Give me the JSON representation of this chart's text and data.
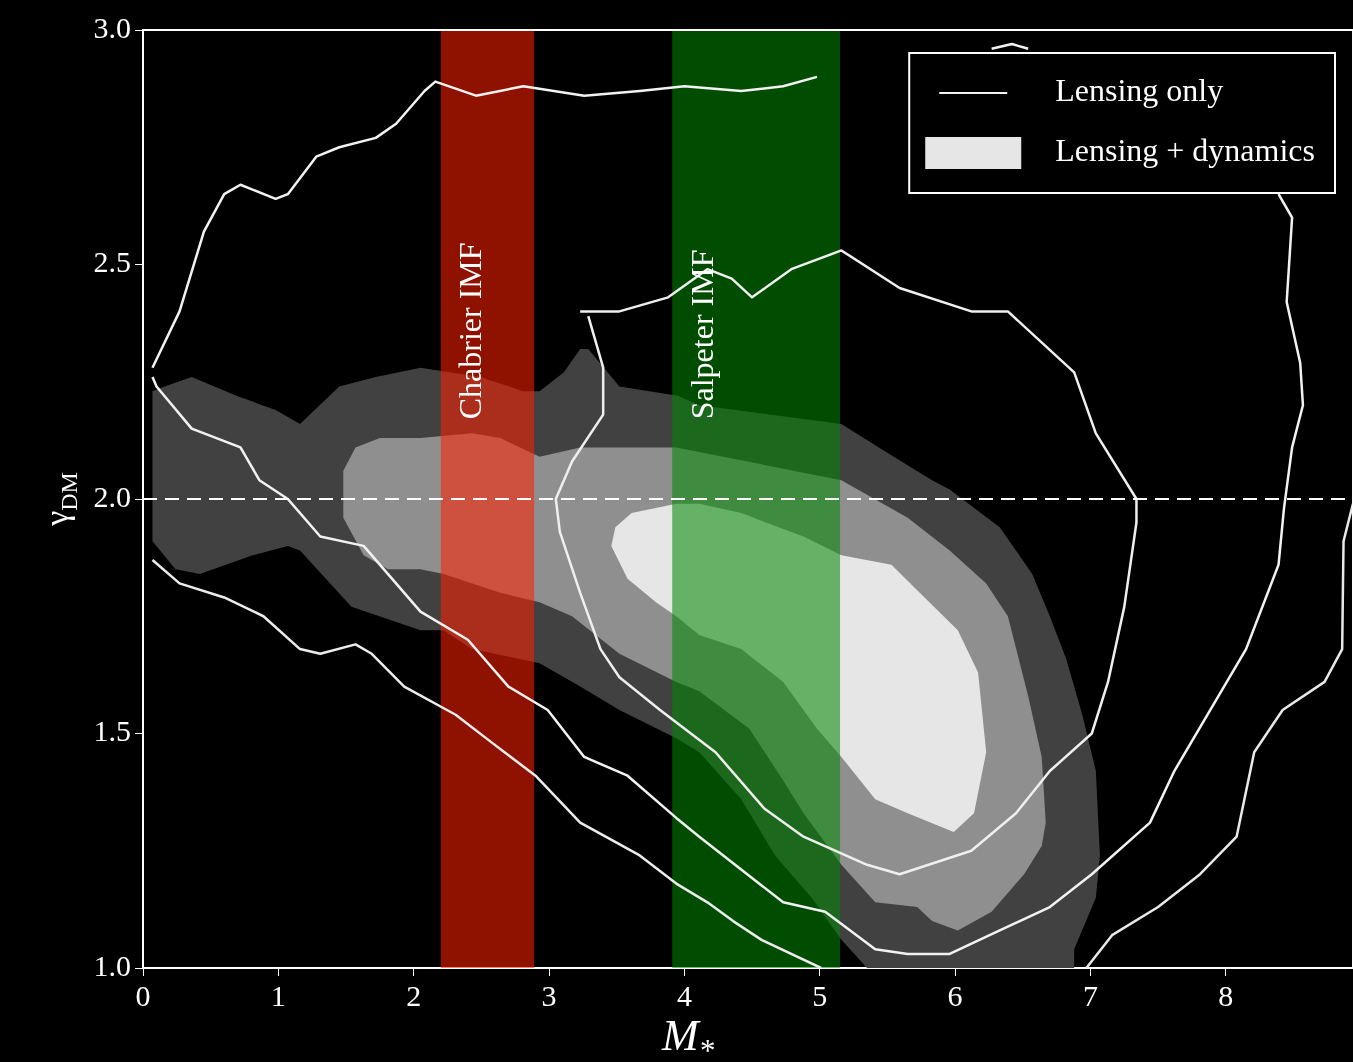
{
  "chart_data": {
    "type": "line",
    "xlabel": "M$_{*}$",
    "ylabel": "γ$_{DM}$",
    "xlim": [
      0,
      8.94
    ],
    "ylim": [
      1,
      3
    ],
    "xticks": [
      0,
      1,
      2,
      3,
      4,
      5,
      6,
      7,
      8
    ],
    "yticks": [
      {
        "value": 1,
        "label": "1.0"
      },
      {
        "value": 1.5,
        "label": "1.5"
      },
      {
        "value": 2,
        "label": "2.0"
      },
      {
        "value": 2.5,
        "label": "2.5"
      },
      {
        "value": 3,
        "label": "3.0"
      }
    ],
    "legend": "top right",
    "series": [
      {
        "type": "area",
        "color": "#414141",
        "x": [
          0.07,
          0.16,
          0.36,
          0.69,
          0.98,
          1.16,
          1.45,
          1.72,
          2.05,
          2.49,
          2.81,
          2.93,
          3.11,
          3.23,
          3.29,
          3.52,
          3.95,
          4.11,
          5.16,
          5.49,
          5.83,
          5.96,
          6.33,
          6.57,
          6.7,
          6.82,
          6.94,
          7.04,
          7.07,
          7.04,
          6.88,
          6.88,
          5.35,
          5.16,
          4.94,
          4.67,
          4.42,
          4.11,
          3.94,
          3.52,
          3.23,
          2.93,
          2.43,
          2.22,
          2.05,
          1.54,
          1.16,
          1.07,
          0.81,
          0.42,
          0.24,
          0.07
        ],
        "values": [
          2.23,
          2.24,
          2.26,
          2.22,
          2.19,
          2.16,
          2.24,
          2.26,
          2.28,
          2.26,
          2.23,
          2.23,
          2.27,
          2.32,
          2.32,
          2.24,
          2.22,
          2.2,
          2.16,
          2.1,
          2.04,
          2.02,
          1.94,
          1.84,
          1.75,
          1.66,
          1.54,
          1.42,
          1.24,
          1.15,
          1.04,
          1.0,
          1.0,
          1.06,
          1.15,
          1.24,
          1.36,
          1.46,
          1.49,
          1.55,
          1.6,
          1.65,
          1.68,
          1.72,
          1.72,
          1.77,
          1.89,
          1.9,
          1.88,
          1.84,
          1.85,
          1.91
        ]
      },
      {
        "type": "area",
        "color": "#8f8f8f",
        "x": [
          1.48,
          1.57,
          1.75,
          2.05,
          2.43,
          2.64,
          2.93,
          3.23,
          3.94,
          5.16,
          5.65,
          5.96,
          6.23,
          6.39,
          6.54,
          6.64,
          6.67,
          6.64,
          6.51,
          6.27,
          6.02,
          5.83,
          5.72,
          5.41,
          5.16,
          4.88,
          4.73,
          4.48,
          4.11,
          3.94,
          3.52,
          3.17,
          2.93,
          2.64,
          2.22,
          2.05,
          1.81,
          1.63,
          1.48
        ],
        "values": [
          2.06,
          2.11,
          2.13,
          2.13,
          2.14,
          2.13,
          2.09,
          2.11,
          2.11,
          2.04,
          1.96,
          1.89,
          1.82,
          1.75,
          1.58,
          1.45,
          1.31,
          1.26,
          1.2,
          1.12,
          1.08,
          1.1,
          1.13,
          1.14,
          1.22,
          1.33,
          1.4,
          1.51,
          1.59,
          1.61,
          1.67,
          1.75,
          1.78,
          1.8,
          1.84,
          1.85,
          1.85,
          1.88,
          1.96
        ]
      },
      {
        "type": "area",
        "name": "Lensing + dynamics",
        "color": "#e6e6e6",
        "x": [
          3.94,
          4.11,
          4.42,
          4.88,
          5.16,
          5.53,
          5.81,
          6.02,
          6.17,
          6.23,
          6.14,
          5.99,
          5.65,
          5.41,
          5.16,
          4.98,
          4.73,
          4.42,
          4.11,
          3.94,
          3.79,
          3.58,
          3.46,
          3.49,
          3.61
        ],
        "values": [
          1.99,
          1.99,
          1.97,
          1.92,
          1.88,
          1.86,
          1.78,
          1.72,
          1.63,
          1.46,
          1.33,
          1.29,
          1.33,
          1.36,
          1.45,
          1.51,
          1.61,
          1.68,
          1.71,
          1.75,
          1.78,
          1.83,
          1.9,
          1.94,
          1.97
        ]
      },
      {
        "name": "Lensing only",
        "color": "#f2f2f2",
        "x": [
          0.07,
          0.27,
          0.45,
          0.6,
          0.72,
          0.98,
          1.07,
          1.28,
          1.45,
          1.72,
          1.87,
          2.08,
          2.16,
          2.46,
          2.81,
          3.26,
          3.67,
          4.0,
          4.42,
          4.73,
          4.98,
          5.6,
          6.27,
          6.42,
          6.54,
          7.4,
          8.39,
          8.49,
          8.45,
          8.55,
          8.57,
          8.49,
          8.43,
          8.39,
          8.15,
          7.62,
          7.44,
          7.01,
          6.7,
          6.33,
          5.96,
          5.65,
          5.41,
          5.04,
          4.73,
          4.11,
          3.94,
          3.58,
          3.26,
          2.99,
          2.7,
          2.4,
          2.05,
          1.63,
          1.31,
          1.07,
          0.86,
          0.72,
          0.36,
          0.1,
          0.07
        ],
        "values": [
          2.28,
          2.4,
          2.57,
          2.65,
          2.67,
          2.64,
          2.65,
          2.73,
          2.75,
          2.77,
          2.8,
          2.87,
          2.89,
          2.86,
          2.88,
          2.86,
          2.87,
          2.88,
          2.87,
          2.88,
          2.9,
          null,
          2.96,
          2.97,
          2.96,
          null,
          2.65,
          2.6,
          2.42,
          2.29,
          2.2,
          2.11,
          1.98,
          1.86,
          1.68,
          1.42,
          1.31,
          1.2,
          1.13,
          1.08,
          1.03,
          1.03,
          1.04,
          1.12,
          1.14,
          1.28,
          1.32,
          1.41,
          1.45,
          1.55,
          1.6,
          1.7,
          1.76,
          1.9,
          1.92,
          2.0,
          2.04,
          2.11,
          2.15,
          2.24,
          2.26
        ]
      },
      {
        "color": "#efefef",
        "x": [
          3.23,
          3.52,
          3.88,
          4.17,
          4.35,
          4.5,
          4.79,
          5.16,
          5.59,
          6.12,
          6.39,
          6.88,
          7.04,
          7.34,
          7.34,
          7.25,
          7.13,
          7.01,
          6.7,
          6.45,
          6.12,
          5.59,
          5.35,
          4.88,
          4.59,
          4.23,
          3.82,
          3.52,
          3.38,
          3.23,
          3.08,
          3.05,
          3.17,
          3.4,
          3.4,
          3.29
        ],
        "values": [
          2.4,
          2.4,
          2.43,
          2.49,
          2.47,
          2.43,
          2.49,
          2.53,
          2.45,
          2.4,
          2.4,
          2.27,
          2.14,
          2.0,
          1.95,
          1.77,
          1.61,
          1.5,
          1.42,
          1.33,
          1.25,
          1.2,
          1.22,
          1.28,
          1.34,
          1.46,
          1.55,
          1.62,
          1.68,
          1.8,
          1.93,
          2.0,
          2.08,
          2.18,
          2.28,
          2.39
        ]
      },
      {
        "color": "#ececec",
        "x": [
          0.07,
          0.27,
          0.6,
          0.89,
          1.16,
          1.31,
          1.57,
          1.69,
          1.93,
          2.31,
          2.58,
          2.9,
          3.23,
          3.67,
          3.94,
          4.17,
          4.36,
          4.57,
          5.01
        ],
        "values": [
          1.87,
          1.82,
          1.79,
          1.75,
          1.68,
          1.67,
          1.69,
          1.67,
          1.6,
          1.54,
          1.48,
          1.41,
          1.31,
          1.24,
          1.18,
          1.14,
          1.1,
          1.06,
          1.0
        ]
      },
      {
        "color": "#e9e9e9",
        "x": [
          6.97,
          7.16,
          7.5,
          7.81,
          8.08,
          8.21,
          8.42,
          8.73,
          8.86,
          8.87,
          8.94
        ],
        "values": [
          1.0,
          1.07,
          1.13,
          1.2,
          1.28,
          1.46,
          1.55,
          1.61,
          1.68,
          1.91,
          1.99
        ]
      }
    ],
    "ref_lines": [
      {
        "axis": "y",
        "value": 2,
        "color": "#ffffff",
        "line_style": "dashed"
      }
    ],
    "bands": [
      {
        "axis": "x",
        "from": 2.2,
        "to": 2.89,
        "label": "Chabrier IMF",
        "color": "#ff1e00"
      },
      {
        "axis": "x",
        "from": 3.91,
        "to": 5.15,
        "label": "Salpeter IMF",
        "color": "#008800"
      }
    ]
  }
}
